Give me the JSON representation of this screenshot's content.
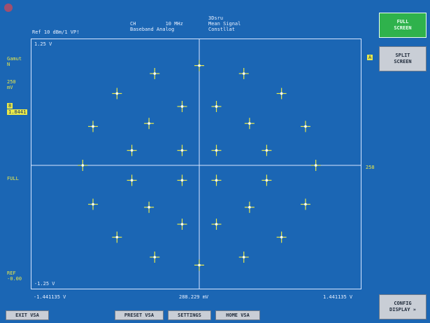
{
  "header": {
    "ref_line": "Ref 10 dBm/1 VP!",
    "block1": "CH          10 MHz\nBaseband Analog",
    "block2": "3Dsru\nMean Signal\nConstllat"
  },
  "left_panel": {
    "label1": "Gamut\nN",
    "label2": "250\nmV",
    "highlight_small": "8",
    "highlight_value": "1.8441",
    "label3": "FULL",
    "label4": "REF\n-0.00"
  },
  "plot": {
    "y_top": "1.25 V",
    "y_bottom": "-1.25 V",
    "x_left": "-1.441135 V",
    "x_center": "288.229 mV",
    "x_right": "1.441135 V"
  },
  "right_markers": {
    "tag": "A",
    "rlabel": "258"
  },
  "softkeys": {
    "full_screen": "FULL\nSCREEN",
    "split_screen": "SPLIT\nSCREEN",
    "config_display": "CONFIG\nDISPLAY »"
  },
  "hardkeys": {
    "exit": "EXIT VSA",
    "preset": "PRESET VSA",
    "settings": "SETTINGS",
    "home": "HOME VSA"
  },
  "colors": {
    "background": "#1b66b4",
    "trace": "#e8e84a",
    "active_key": "#2fb24c"
  },
  "chart_data": {
    "type": "scatter",
    "xlim": [
      -1.441135,
      1.441135
    ],
    "ylim": [
      -1.25,
      1.25
    ],
    "grid": false,
    "points": [
      {
        "x": 0.0,
        "y": 1.0
      },
      {
        "x": -0.39,
        "y": 0.92
      },
      {
        "x": 0.39,
        "y": 0.92
      },
      {
        "x": -0.72,
        "y": 0.72
      },
      {
        "x": 0.72,
        "y": 0.72
      },
      {
        "x": -0.93,
        "y": 0.39
      },
      {
        "x": 0.93,
        "y": 0.39
      },
      {
        "x": -1.02,
        "y": 0.0
      },
      {
        "x": 1.02,
        "y": 0.0
      },
      {
        "x": -0.93,
        "y": -0.39
      },
      {
        "x": 0.93,
        "y": -0.39
      },
      {
        "x": -0.72,
        "y": -0.72
      },
      {
        "x": 0.72,
        "y": -0.72
      },
      {
        "x": -0.39,
        "y": -0.92
      },
      {
        "x": 0.39,
        "y": -0.92
      },
      {
        "x": 0.0,
        "y": -1.0
      },
      {
        "x": -0.44,
        "y": 0.42
      },
      {
        "x": -0.15,
        "y": 0.59
      },
      {
        "x": 0.15,
        "y": 0.59
      },
      {
        "x": 0.44,
        "y": 0.42
      },
      {
        "x": -0.59,
        "y": 0.15
      },
      {
        "x": -0.15,
        "y": 0.15
      },
      {
        "x": 0.15,
        "y": 0.15
      },
      {
        "x": 0.59,
        "y": 0.15
      },
      {
        "x": -0.59,
        "y": -0.15
      },
      {
        "x": -0.15,
        "y": -0.15
      },
      {
        "x": 0.15,
        "y": -0.15
      },
      {
        "x": 0.59,
        "y": -0.15
      },
      {
        "x": -0.44,
        "y": -0.42
      },
      {
        "x": -0.15,
        "y": -0.59
      },
      {
        "x": 0.15,
        "y": -0.59
      },
      {
        "x": 0.44,
        "y": -0.42
      }
    ]
  }
}
